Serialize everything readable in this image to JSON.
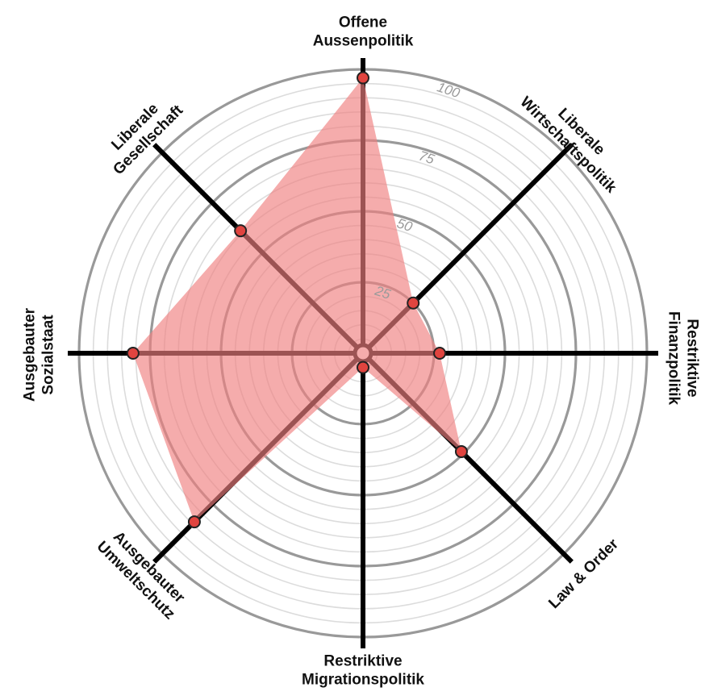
{
  "chart_data": {
    "type": "radar",
    "title": "",
    "axes": [
      {
        "label": [
          "Offene",
          "Aussenpolitik"
        ]
      },
      {
        "label": [
          "Liberale",
          "Wirtschaftspolitik"
        ]
      },
      {
        "label": [
          "Restriktive",
          "Finanzpolitik"
        ]
      },
      {
        "label": [
          "Law & Order"
        ]
      },
      {
        "label": [
          "Restriktive",
          "Migrationspolitik"
        ]
      },
      {
        "label": [
          "Ausgebauter",
          "Umweltschutz"
        ]
      },
      {
        "label": [
          "Ausgebauter",
          "Sozialstaat"
        ]
      },
      {
        "label": [
          "Liberale",
          "Gesellschaft"
        ]
      }
    ],
    "series": [
      {
        "values": [
          97,
          25,
          27,
          49,
          5,
          84,
          81,
          61
        ]
      }
    ],
    "range": [
      0,
      100
    ],
    "ticks": [
      25,
      50,
      75,
      100
    ],
    "tick_labels": [
      "25",
      "50",
      "75",
      "100"
    ],
    "minor_step": 5,
    "grid": true,
    "colors": {
      "fill": "#f08080",
      "fill_opacity": 0.65,
      "marker": "#e0443f",
      "axis": "#000000",
      "major_grid": "#999999",
      "minor_grid": "#dcdcdc"
    }
  }
}
